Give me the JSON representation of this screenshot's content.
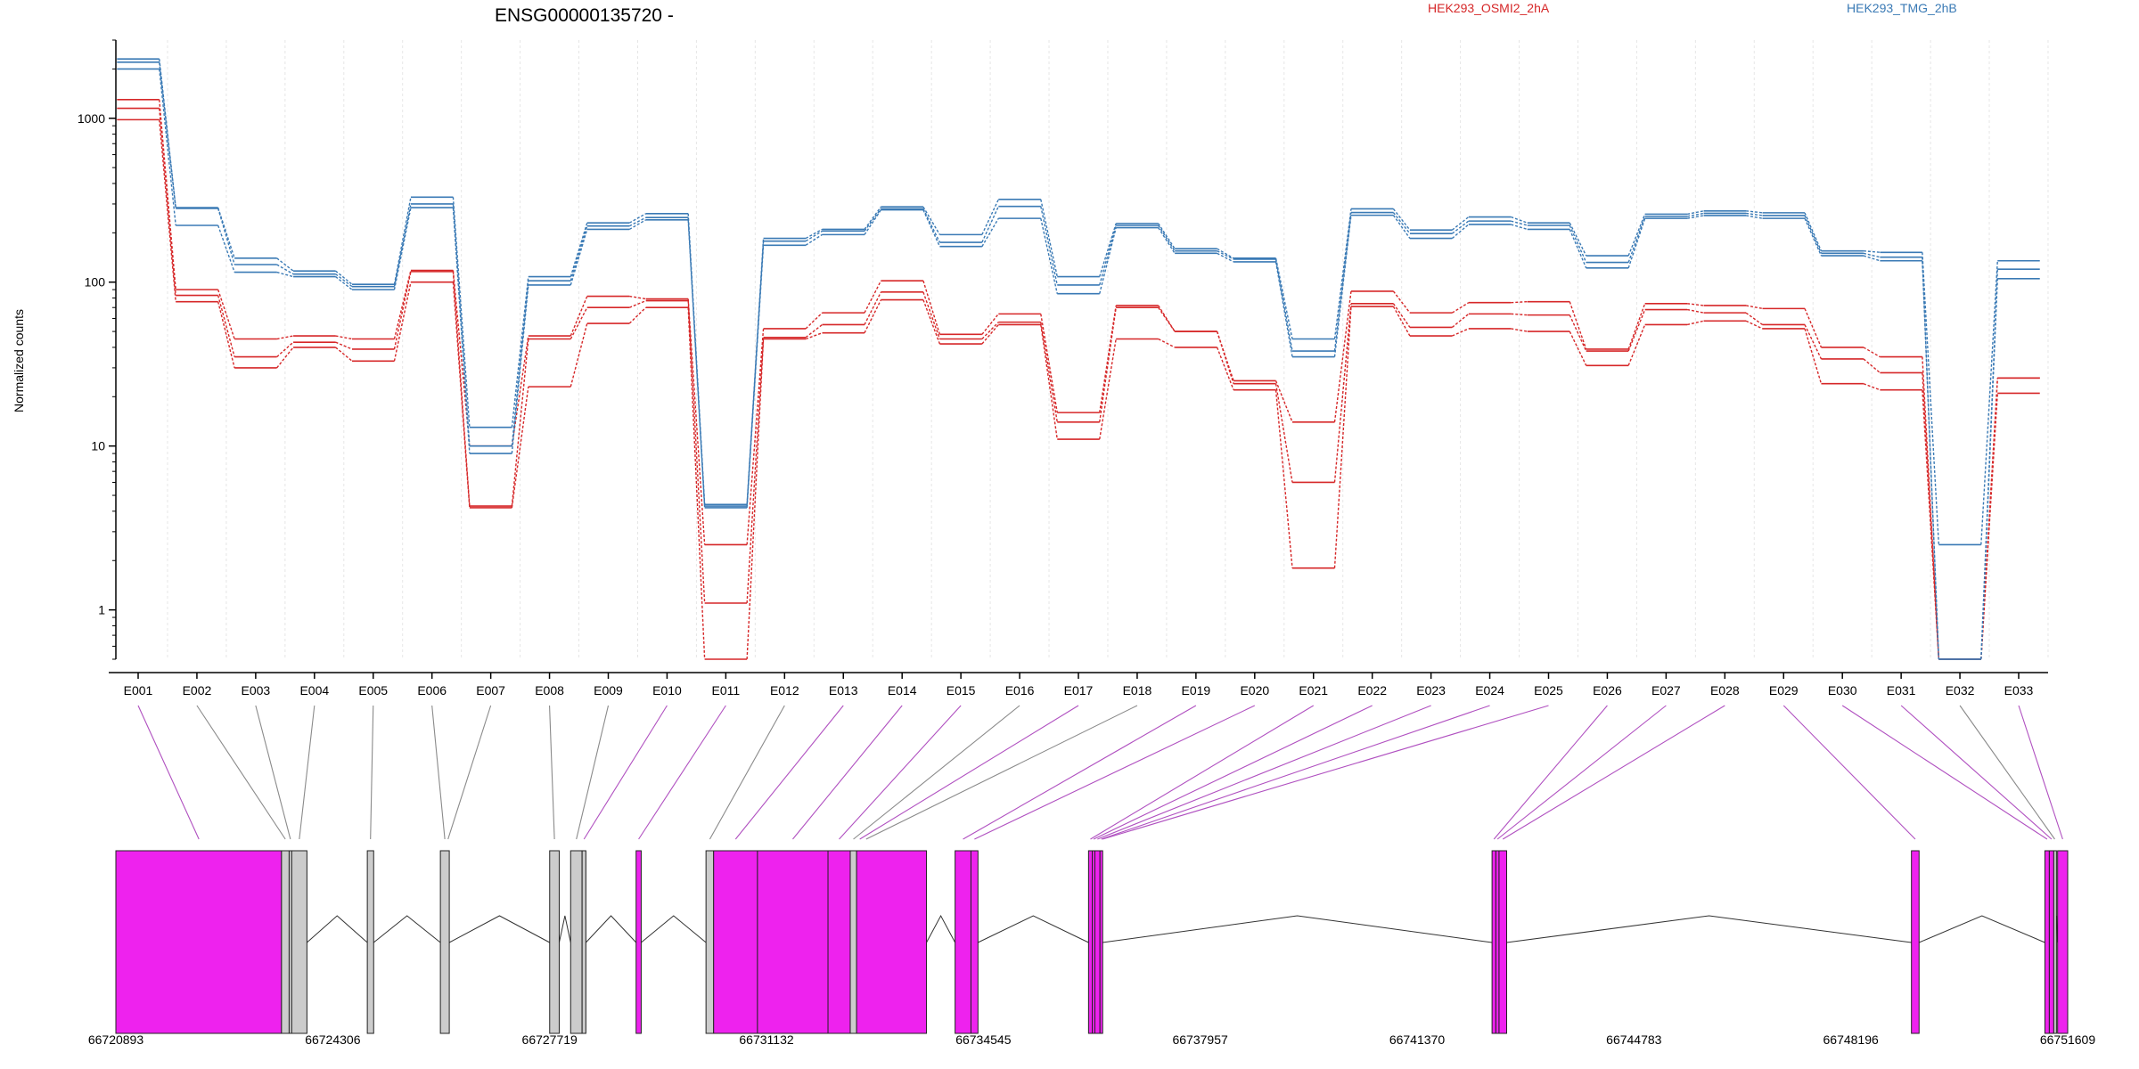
{
  "title": "ENSG00000135720 -",
  "legend": [
    {
      "label": "HEK293_OSMI2_2hA",
      "color": "#d62728"
    },
    {
      "label": "HEK293_TMG_2hB",
      "color": "#3a7ab5"
    }
  ],
  "colors": {
    "red": "#d62728",
    "blue": "#3a7ab5",
    "exon_feature": "#ee22ee",
    "exon_plain": "#cccccc",
    "link_feature": "#b050c0",
    "link_plain": "#8a8a8a",
    "grid": "#e6e6e6"
  },
  "chart_data": {
    "type": "line",
    "y_scale": "log",
    "ylabel": "Normalized counts",
    "ylim": [
      0.5,
      3000
    ],
    "y_ticks": [
      1,
      10,
      100,
      1000
    ],
    "y_tick_labels": [
      "1",
      "10",
      "100",
      "1000"
    ],
    "categories": [
      "E001",
      "E002",
      "E003",
      "E004",
      "E005",
      "E006",
      "E007",
      "E008",
      "E009",
      "E010",
      "E011",
      "E012",
      "E013",
      "E014",
      "E015",
      "E016",
      "E017",
      "E018",
      "E019",
      "E020",
      "E021",
      "E022",
      "E023",
      "E024",
      "E025",
      "E026",
      "E027",
      "E028",
      "E029",
      "E030",
      "E031",
      "E032",
      "E033"
    ],
    "series": [
      {
        "group": "HEK293_OSMI2_2hA",
        "values": [
          1300,
          90,
          45,
          47,
          45,
          118,
          10,
          47,
          82,
          79,
          2.5,
          52,
          65,
          102,
          48,
          64,
          16,
          72,
          50,
          25,
          14,
          88,
          65,
          75,
          76,
          39,
          74,
          72,
          69,
          40,
          35,
          0.5,
          26
        ]
      },
      {
        "group": "HEK293_OSMI2_2hA",
        "values": [
          1150,
          83,
          35,
          43,
          39,
          116,
          4.3,
          45,
          70,
          77,
          1.1,
          46,
          55,
          87,
          45,
          57,
          14,
          70,
          50,
          24,
          6,
          74,
          53,
          64,
          63,
          38,
          68,
          65,
          55,
          34,
          28,
          0.5,
          26
        ]
      },
      {
        "group": "HEK293_OSMI2_2hA",
        "values": [
          980,
          76,
          30,
          40,
          33,
          100,
          4.2,
          23,
          56,
          70,
          0.5,
          45,
          49,
          78,
          42,
          55,
          11,
          45,
          40,
          22,
          1.8,
          71,
          47,
          52,
          50,
          31,
          55,
          58,
          52,
          24,
          22,
          0.5,
          21
        ]
      },
      {
        "group": "HEK293_TMG_2hB",
        "values": [
          2300,
          285,
          140,
          117,
          97,
          330,
          13,
          108,
          230,
          262,
          4.4,
          185,
          210,
          288,
          195,
          320,
          108,
          228,
          160,
          140,
          45,
          280,
          208,
          250,
          230,
          145,
          260,
          272,
          265,
          155,
          152,
          2.5,
          135
        ]
      },
      {
        "group": "HEK293_TMG_2hB",
        "values": [
          2200,
          282,
          128,
          112,
          94,
          300,
          10,
          102,
          220,
          248,
          4.3,
          178,
          205,
          280,
          175,
          290,
          96,
          222,
          155,
          138,
          38,
          266,
          198,
          236,
          222,
          132,
          252,
          263,
          255,
          150,
          142,
          0.5,
          120
        ]
      },
      {
        "group": "HEK293_TMG_2hB",
        "values": [
          2000,
          222,
          115,
          108,
          90,
          285,
          9,
          96,
          210,
          240,
          4.2,
          168,
          195,
          276,
          165,
          245,
          85,
          215,
          150,
          133,
          35,
          256,
          185,
          225,
          210,
          122,
          245,
          255,
          245,
          145,
          135,
          0.5,
          105
        ]
      }
    ]
  },
  "gene_model": {
    "coord_start": 66720893,
    "coord_end": 66751609,
    "axis_ticks": [
      {
        "value": 66720893,
        "label": "66720893"
      },
      {
        "value": 66724306,
        "label": "66724306"
      },
      {
        "value": 66727719,
        "label": "66727719"
      },
      {
        "value": 66731132,
        "label": "66731132"
      },
      {
        "value": 66734545,
        "label": "66734545"
      },
      {
        "value": 66737957,
        "label": "66737957"
      },
      {
        "value": 66741370,
        "label": "66741370"
      },
      {
        "value": 66744783,
        "label": "66744783"
      },
      {
        "value": 66748196,
        "label": "66748196"
      },
      {
        "value": 66751609,
        "label": "66751609"
      }
    ],
    "exons": [
      {
        "id": "E001",
        "start": 66720893,
        "end": 66723500,
        "highlight": true
      },
      {
        "id": "E002",
        "start": 66723500,
        "end": 66723620,
        "highlight": false
      },
      {
        "id": "E003",
        "start": 66723620,
        "end": 66723660,
        "highlight": false
      },
      {
        "id": "E004",
        "start": 66723660,
        "end": 66723900,
        "highlight": false
      },
      {
        "id": "E005",
        "start": 66724850,
        "end": 66724950,
        "highlight": false
      },
      {
        "id": "E006",
        "start": 66726000,
        "end": 66726140,
        "highlight": false
      },
      {
        "id": "E007",
        "start": 66727720,
        "end": 66727870,
        "highlight": false
      },
      {
        "id": "E008",
        "start": 66728050,
        "end": 66728230,
        "highlight": false
      },
      {
        "id": "E009",
        "start": 66728230,
        "end": 66728290,
        "highlight": false
      },
      {
        "id": "E010",
        "start": 66729080,
        "end": 66729160,
        "highlight": true
      },
      {
        "id": "E011",
        "start": 66730180,
        "end": 66730300,
        "highlight": false
      },
      {
        "id": "E012",
        "start": 66730300,
        "end": 66730990,
        "highlight": true
      },
      {
        "id": "E013",
        "start": 66730990,
        "end": 66732100,
        "highlight": true
      },
      {
        "id": "E014",
        "start": 66732100,
        "end": 66732450,
        "highlight": true
      },
      {
        "id": "E015",
        "start": 66732450,
        "end": 66732550,
        "highlight": false
      },
      {
        "id": "E016",
        "start": 66732550,
        "end": 66733650,
        "highlight": true
      },
      {
        "id": "E017",
        "start": 66734100,
        "end": 66734350,
        "highlight": true
      },
      {
        "id": "E018",
        "start": 66734350,
        "end": 66734460,
        "highlight": true
      },
      {
        "id": "E019",
        "start": 66736200,
        "end": 66736260,
        "highlight": true
      },
      {
        "id": "E020",
        "start": 66736260,
        "end": 66736300,
        "highlight": true
      },
      {
        "id": "E021",
        "start": 66736300,
        "end": 66736380,
        "highlight": true
      },
      {
        "id": "E022",
        "start": 66736380,
        "end": 66736420,
        "highlight": true
      },
      {
        "id": "E023",
        "start": 66742550,
        "end": 66742610,
        "highlight": true
      },
      {
        "id": "E024",
        "start": 66742610,
        "end": 66742660,
        "highlight": true
      },
      {
        "id": "E025",
        "start": 66742660,
        "end": 66742780,
        "highlight": true
      },
      {
        "id": "E026",
        "start": 66749150,
        "end": 66749270,
        "highlight": true
      },
      {
        "id": "E027",
        "start": 66751250,
        "end": 66751320,
        "highlight": true
      },
      {
        "id": "E028",
        "start": 66751320,
        "end": 66751390,
        "highlight": true
      },
      {
        "id": "E029",
        "start": 66751390,
        "end": 66751420,
        "highlight": false
      },
      {
        "id": "E030",
        "start": 66751450,
        "end": 66751609,
        "highlight": true
      }
    ],
    "introns": [
      [
        66723900,
        66724850
      ],
      [
        66724950,
        66726000
      ],
      [
        66726140,
        66727720
      ],
      [
        66727870,
        66728050
      ],
      [
        66728290,
        66729080
      ],
      [
        66729160,
        66730180
      ],
      [
        66733650,
        66734100
      ],
      [
        66734460,
        66736200
      ],
      [
        66736420,
        66742550
      ],
      [
        66742780,
        66749150
      ],
      [
        66749270,
        66751250
      ],
      [
        66751420,
        66751450
      ]
    ],
    "bin_links": [
      {
        "bin": "E001",
        "target": 66722200,
        "highlight": true
      },
      {
        "bin": "E002",
        "target": 66723560,
        "highlight": false
      },
      {
        "bin": "E003",
        "target": 66723640,
        "highlight": false
      },
      {
        "bin": "E004",
        "target": 66723780,
        "highlight": false
      },
      {
        "bin": "E005",
        "target": 66724900,
        "highlight": false
      },
      {
        "bin": "E006",
        "target": 66726070,
        "highlight": false
      },
      {
        "bin": "E007",
        "target": 66726120,
        "highlight": false
      },
      {
        "bin": "E008",
        "target": 66727795,
        "highlight": false
      },
      {
        "bin": "E009",
        "target": 66728140,
        "highlight": false
      },
      {
        "bin": "E010",
        "target": 66728260,
        "highlight": true
      },
      {
        "bin": "E011",
        "target": 66729120,
        "highlight": true
      },
      {
        "bin": "E012",
        "target": 66730240,
        "highlight": false
      },
      {
        "bin": "E013",
        "target": 66730645,
        "highlight": true
      },
      {
        "bin": "E014",
        "target": 66731545,
        "highlight": true
      },
      {
        "bin": "E015",
        "target": 66732275,
        "highlight": true
      },
      {
        "bin": "E016",
        "target": 66732500,
        "highlight": false
      },
      {
        "bin": "E017",
        "target": 66732600,
        "highlight": true
      },
      {
        "bin": "E018",
        "target": 66732700,
        "highlight": false
      },
      {
        "bin": "E019",
        "target": 66734225,
        "highlight": true
      },
      {
        "bin": "E020",
        "target": 66734405,
        "highlight": true
      },
      {
        "bin": "E021",
        "target": 66736230,
        "highlight": true
      },
      {
        "bin": "E022",
        "target": 66736280,
        "highlight": true
      },
      {
        "bin": "E023",
        "target": 66736340,
        "highlight": true
      },
      {
        "bin": "E024",
        "target": 66736400,
        "highlight": true
      },
      {
        "bin": "E025",
        "target": 66736420,
        "highlight": true
      },
      {
        "bin": "E026",
        "target": 66742580,
        "highlight": true
      },
      {
        "bin": "E027",
        "target": 66742635,
        "highlight": true
      },
      {
        "bin": "E028",
        "target": 66742720,
        "highlight": true
      },
      {
        "bin": "E029",
        "target": 66749210,
        "highlight": true
      },
      {
        "bin": "E030",
        "target": 66751285,
        "highlight": true
      },
      {
        "bin": "E031",
        "target": 66751355,
        "highlight": true
      },
      {
        "bin": "E032",
        "target": 66751405,
        "highlight": false
      },
      {
        "bin": "E033",
        "target": 66751530,
        "highlight": true
      }
    ]
  }
}
